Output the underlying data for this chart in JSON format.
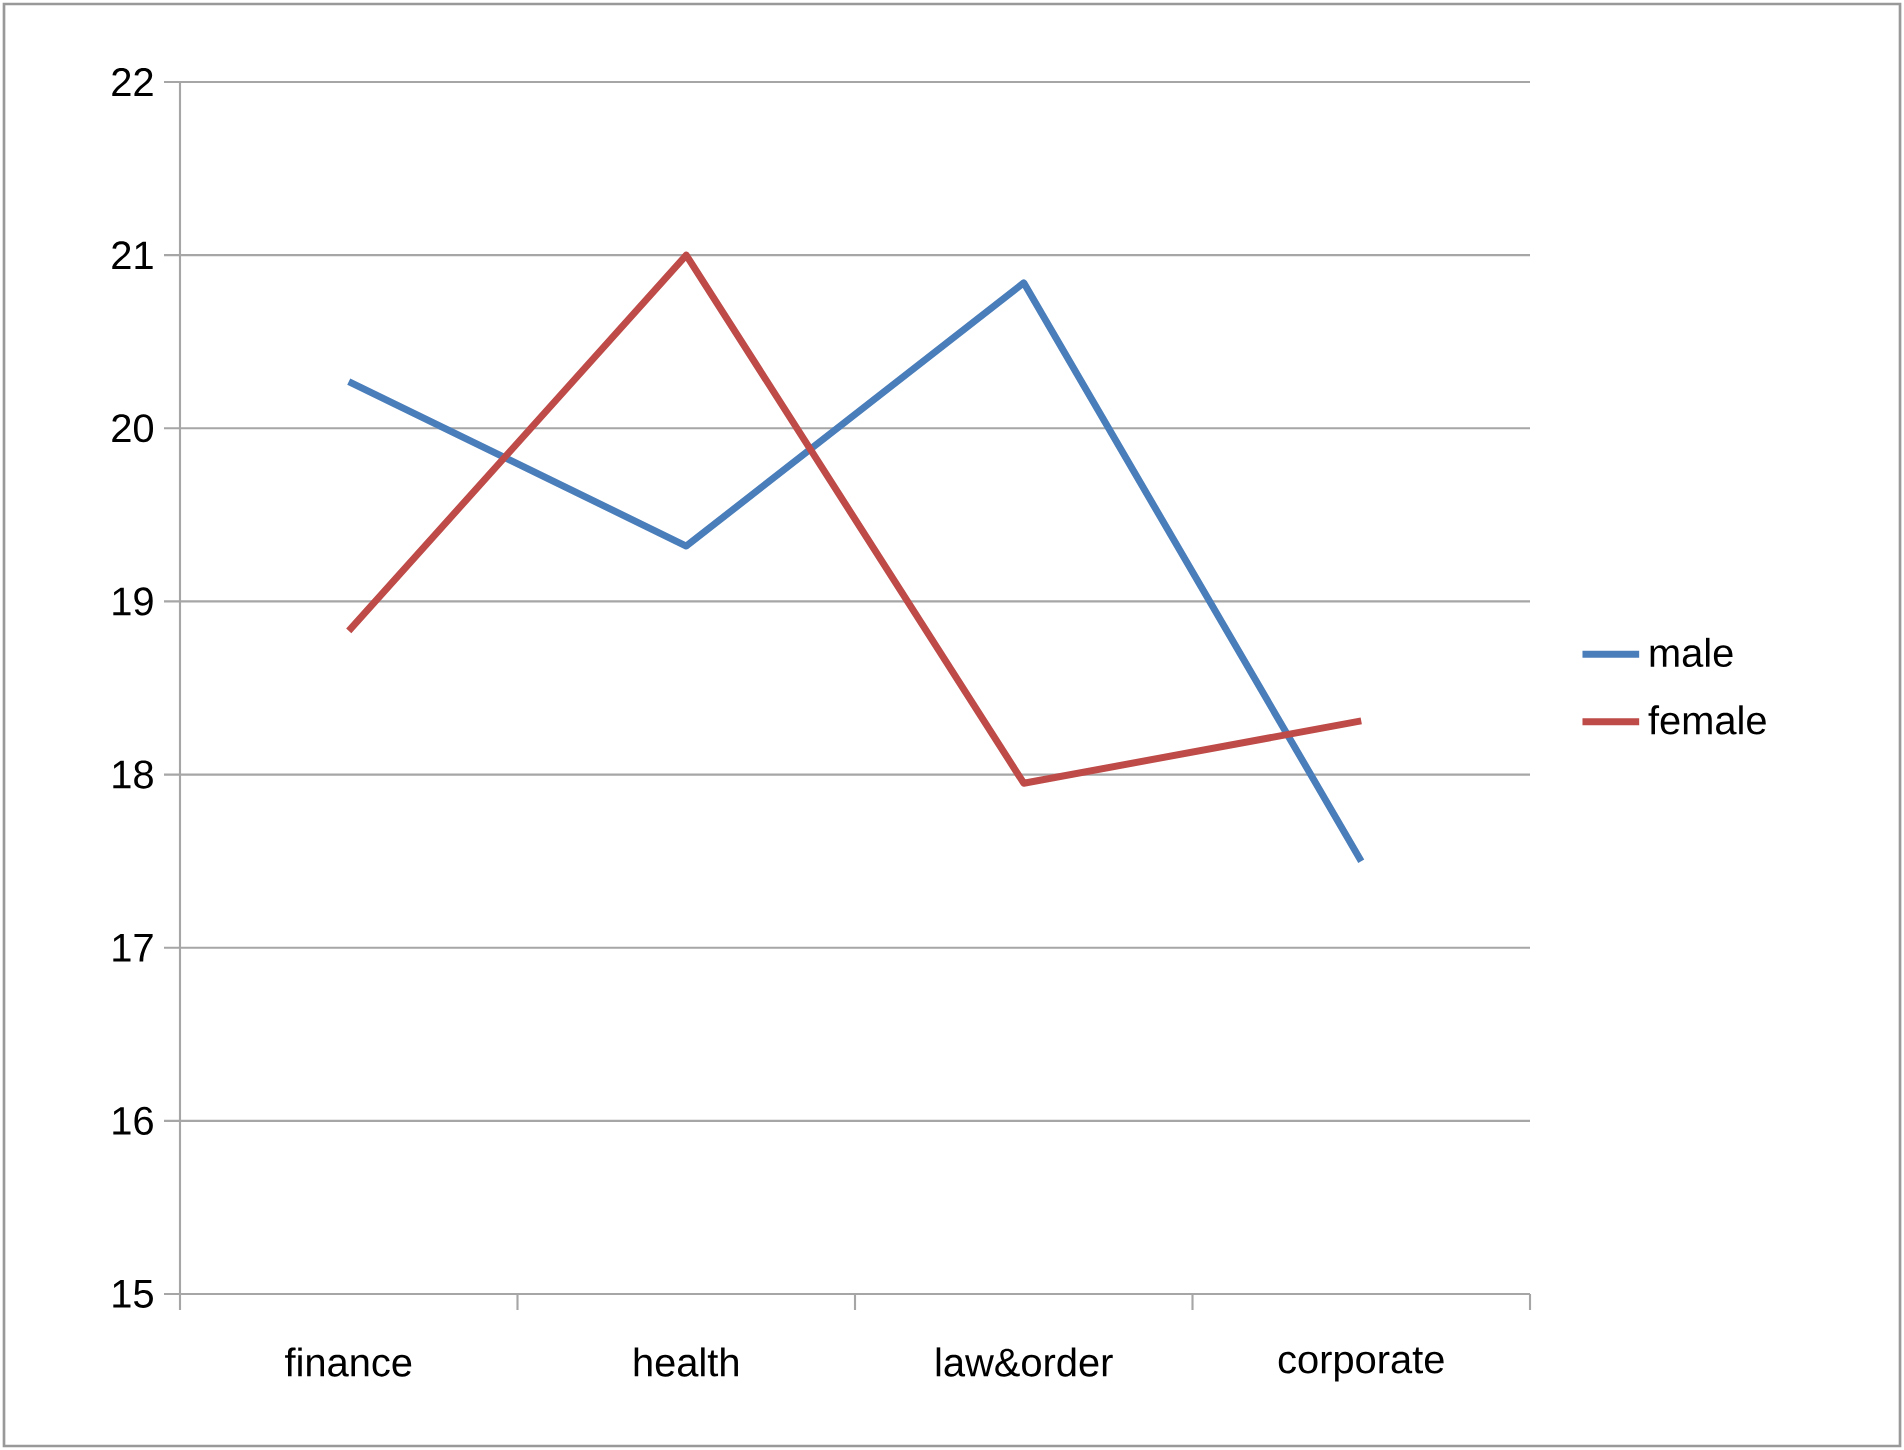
{
  "chart_data": {
    "type": "line",
    "categories": [
      "finance",
      "health",
      "law&order",
      "corporate"
    ],
    "series": [
      {
        "name": "male",
        "color": "#4a7ebb",
        "values": [
          20.27,
          19.32,
          20.84,
          17.5
        ]
      },
      {
        "name": "female",
        "color": "#be4b48",
        "values": [
          18.83,
          21.0,
          17.95,
          18.31
        ]
      }
    ],
    "ylim": [
      15,
      22
    ],
    "yticks": [
      15,
      16,
      17,
      18,
      19,
      20,
      21,
      22
    ],
    "grid": "y",
    "legend": "right",
    "marker": "none",
    "line_style": "solid"
  }
}
